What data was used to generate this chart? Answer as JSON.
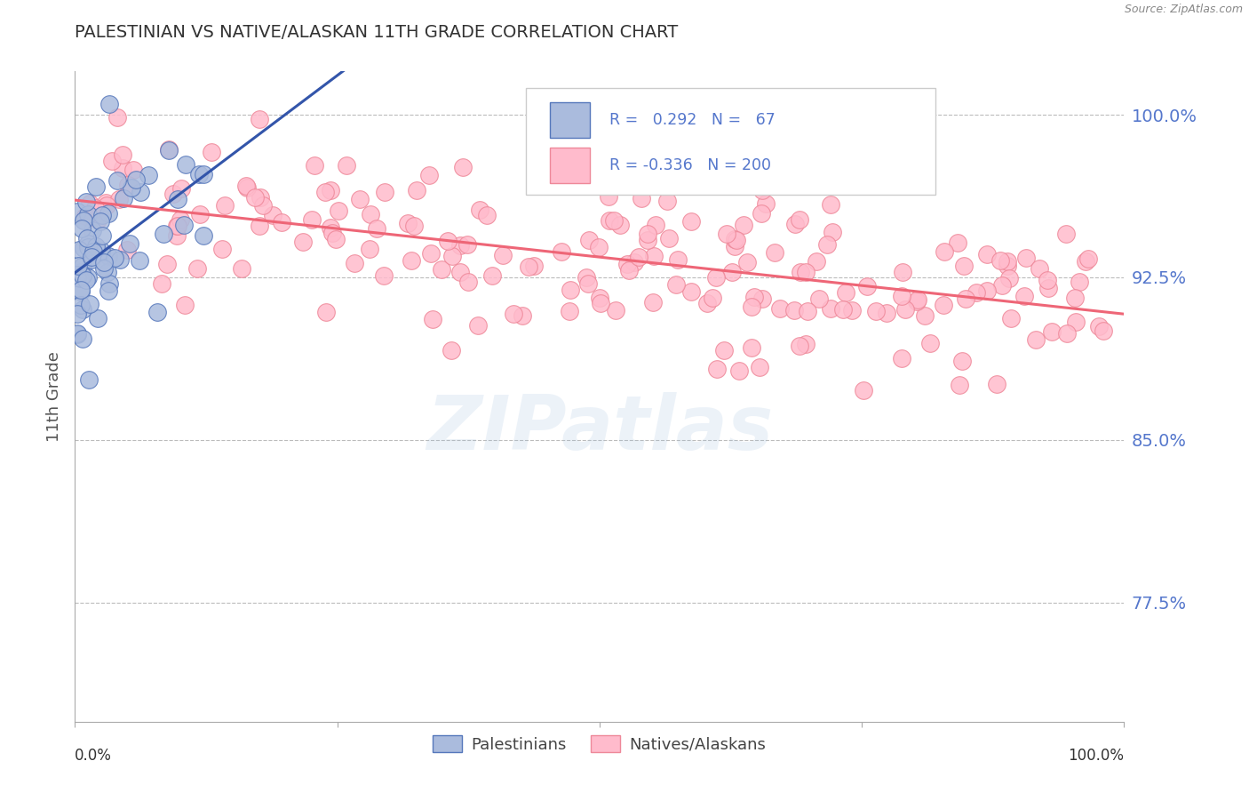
{
  "title": "PALESTINIAN VS NATIVE/ALASKAN 11TH GRADE CORRELATION CHART",
  "source": "Source: ZipAtlas.com",
  "ylabel": "11th Grade",
  "x_range": [
    0.0,
    1.0
  ],
  "y_range": [
    0.72,
    1.02
  ],
  "blue_R": 0.292,
  "blue_N": 67,
  "pink_R": -0.336,
  "pink_N": 200,
  "blue_color": "#AABBDD",
  "pink_color": "#FFBBCC",
  "blue_edge_color": "#5577BB",
  "pink_edge_color": "#EE8899",
  "blue_line_color": "#3355AA",
  "pink_line_color": "#EE6677",
  "legend_label_blue": "Palestinians",
  "legend_label_pink": "Natives/Alaskans",
  "watermark": "ZIPatlas",
  "grid_color": "#BBBBBB",
  "background_color": "#FFFFFF",
  "ytick_positions": [
    0.775,
    0.85,
    0.925,
    1.0
  ],
  "ytick_labels": [
    "77.5%",
    "85.0%",
    "92.5%",
    "100.0%"
  ],
  "ytick_color": "#5577CC",
  "title_color": "#333333",
  "source_color": "#888888",
  "ylabel_color": "#555555"
}
